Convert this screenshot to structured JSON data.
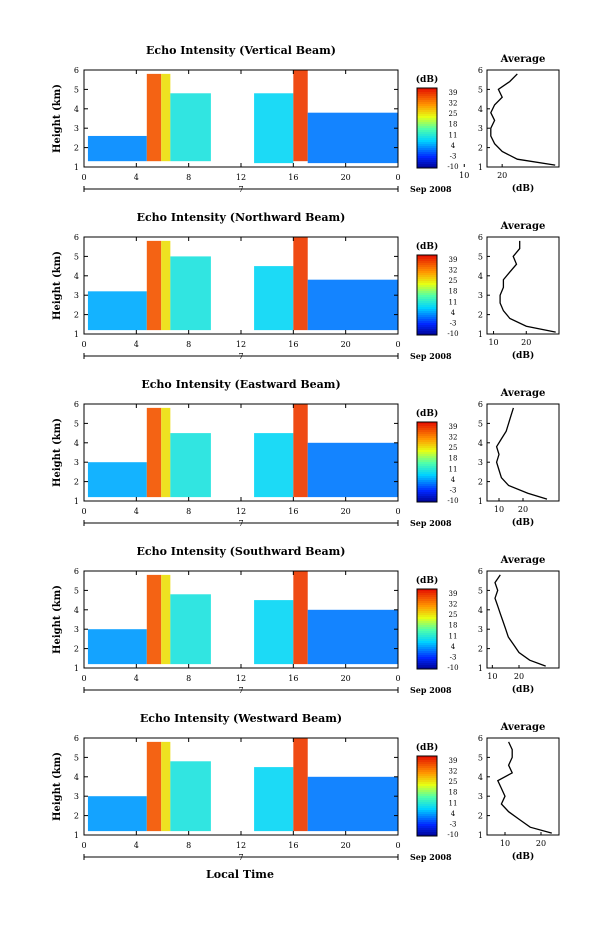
{
  "figure": {
    "xlabel_bottom": "Local Time",
    "date_label": "Sep 2008",
    "day_label": "7",
    "colorbar_unit": "(dB)",
    "colorbar_ticks": [
      "39",
      "32",
      "25",
      "18",
      "11",
      "4",
      "-3",
      "-10"
    ],
    "avg_title": "Average",
    "avg_xlabel": "(dB)"
  },
  "chart_data": [
    {
      "type": "heatmap",
      "title": "Echo Intensity (Vertical Beam)",
      "ylabel": "Height (km)",
      "xlim": [
        0,
        24
      ],
      "ylim": [
        1,
        6
      ],
      "xticks": [
        "0",
        "4",
        "8",
        "12",
        "16",
        "20",
        "0"
      ],
      "yticks": [
        "1",
        "2",
        "3",
        "4",
        "5",
        "6"
      ],
      "colorbar": {
        "min": -10,
        "max": 39,
        "unit": "dB"
      },
      "regions": [
        {
          "x0": 0.3,
          "x1": 4.8,
          "y0": 1.3,
          "y1": 2.6,
          "value": 3
        },
        {
          "x0": 4.8,
          "x1": 5.9,
          "y0": 1.3,
          "y1": 5.8,
          "value": 34
        },
        {
          "x0": 5.9,
          "x1": 6.6,
          "y0": 1.3,
          "y1": 5.8,
          "value": 24
        },
        {
          "x0": 6.6,
          "x1": 9.7,
          "y0": 1.3,
          "y1": 4.8,
          "value": 10
        },
        {
          "x0": 13.0,
          "x1": 16.0,
          "y0": 1.2,
          "y1": 4.8,
          "value": 8
        },
        {
          "x0": 16.0,
          "x1": 17.1,
          "y0": 1.3,
          "y1": 6.0,
          "value": 36
        },
        {
          "x0": 17.1,
          "x1": 24.0,
          "y0": 1.2,
          "y1": 3.8,
          "value": 2
        }
      ],
      "average": {
        "xlim": [
          16,
          35
        ],
        "xticks": [
          "10",
          "20"
        ],
        "heights": [
          1.1,
          1.4,
          1.8,
          2.2,
          2.6,
          3.0,
          3.4,
          3.8,
          4.2,
          4.6,
          5.0,
          5.4,
          5.8
        ],
        "values": [
          34,
          24,
          20,
          18,
          17,
          17,
          18,
          17,
          18,
          20,
          19,
          22,
          24
        ]
      }
    },
    {
      "type": "heatmap",
      "title": "Echo Intensity (Northward Beam)",
      "ylabel": "Height (km)",
      "xlim": [
        0,
        24
      ],
      "ylim": [
        1,
        6
      ],
      "xticks": [
        "0",
        "4",
        "8",
        "12",
        "16",
        "20",
        "0"
      ],
      "yticks": [
        "1",
        "2",
        "3",
        "4",
        "5",
        "6"
      ],
      "colorbar": {
        "min": -10,
        "max": 39,
        "unit": "dB"
      },
      "regions": [
        {
          "x0": 0.3,
          "x1": 4.8,
          "y0": 1.2,
          "y1": 3.2,
          "value": 5
        },
        {
          "x0": 4.8,
          "x1": 5.9,
          "y0": 1.2,
          "y1": 5.8,
          "value": 34
        },
        {
          "x0": 5.9,
          "x1": 6.6,
          "y0": 1.2,
          "y1": 5.8,
          "value": 24
        },
        {
          "x0": 6.6,
          "x1": 9.7,
          "y0": 1.2,
          "y1": 5.0,
          "value": 10
        },
        {
          "x0": 13.0,
          "x1": 16.0,
          "y0": 1.2,
          "y1": 4.5,
          "value": 8
        },
        {
          "x0": 16.0,
          "x1": 17.1,
          "y0": 1.2,
          "y1": 6.0,
          "value": 36
        },
        {
          "x0": 17.1,
          "x1": 24.0,
          "y0": 1.2,
          "y1": 3.8,
          "value": 2
        }
      ],
      "average": {
        "xlim": [
          8,
          30
        ],
        "xticks": [
          "10",
          "20"
        ],
        "heights": [
          1.1,
          1.4,
          1.8,
          2.2,
          2.6,
          3.0,
          3.4,
          3.8,
          4.2,
          4.6,
          5.0,
          5.4,
          5.8
        ],
        "values": [
          29,
          20,
          15,
          13,
          12,
          12,
          13,
          13,
          15,
          17,
          16,
          18,
          18
        ]
      }
    },
    {
      "type": "heatmap",
      "title": "Echo Intensity (Eastward Beam)",
      "ylabel": "Height (km)",
      "xlim": [
        0,
        24
      ],
      "ylim": [
        1,
        6
      ],
      "xticks": [
        "0",
        "4",
        "8",
        "12",
        "16",
        "20",
        "0"
      ],
      "yticks": [
        "1",
        "2",
        "3",
        "4",
        "5",
        "6"
      ],
      "colorbar": {
        "min": -10,
        "max": 39,
        "unit": "dB"
      },
      "regions": [
        {
          "x0": 0.3,
          "x1": 4.8,
          "y0": 1.2,
          "y1": 3.0,
          "value": 5
        },
        {
          "x0": 4.8,
          "x1": 5.9,
          "y0": 1.2,
          "y1": 5.8,
          "value": 34
        },
        {
          "x0": 5.9,
          "x1": 6.6,
          "y0": 1.2,
          "y1": 5.8,
          "value": 24
        },
        {
          "x0": 6.6,
          "x1": 9.7,
          "y0": 1.2,
          "y1": 4.5,
          "value": 10
        },
        {
          "x0": 13.0,
          "x1": 16.0,
          "y0": 1.2,
          "y1": 4.5,
          "value": 8
        },
        {
          "x0": 16.0,
          "x1": 17.1,
          "y0": 1.2,
          "y1": 6.0,
          "value": 36
        },
        {
          "x0": 17.1,
          "x1": 24.0,
          "y0": 1.2,
          "y1": 4.0,
          "value": 2
        }
      ],
      "average": {
        "xlim": [
          5,
          35
        ],
        "xticks": [
          "10",
          "20"
        ],
        "heights": [
          1.1,
          1.4,
          1.8,
          2.2,
          2.6,
          3.0,
          3.4,
          3.8,
          4.2,
          4.6,
          5.0,
          5.4,
          5.8
        ],
        "values": [
          30,
          22,
          14,
          11,
          10,
          9,
          10,
          9,
          11,
          13,
          14,
          15,
          16
        ]
      }
    },
    {
      "type": "heatmap",
      "title": "Echo Intensity (Southward Beam)",
      "ylabel": "Height (km)",
      "xlim": [
        0,
        24
      ],
      "ylim": [
        1,
        6
      ],
      "xticks": [
        "0",
        "4",
        "8",
        "12",
        "16",
        "20",
        "0"
      ],
      "yticks": [
        "1",
        "2",
        "3",
        "4",
        "5",
        "6"
      ],
      "colorbar": {
        "min": -10,
        "max": 39,
        "unit": "dB"
      },
      "regions": [
        {
          "x0": 0.3,
          "x1": 4.8,
          "y0": 1.2,
          "y1": 3.0,
          "value": 4
        },
        {
          "x0": 4.8,
          "x1": 5.9,
          "y0": 1.2,
          "y1": 5.8,
          "value": 34
        },
        {
          "x0": 5.9,
          "x1": 6.6,
          "y0": 1.2,
          "y1": 5.8,
          "value": 24
        },
        {
          "x0": 6.6,
          "x1": 9.7,
          "y0": 1.2,
          "y1": 4.8,
          "value": 10
        },
        {
          "x0": 13.0,
          "x1": 16.0,
          "y0": 1.2,
          "y1": 4.5,
          "value": 8
        },
        {
          "x0": 16.0,
          "x1": 17.1,
          "y0": 1.2,
          "y1": 6.0,
          "value": 36
        },
        {
          "x0": 17.1,
          "x1": 24.0,
          "y0": 1.2,
          "y1": 4.0,
          "value": 2
        }
      ],
      "average": {
        "xlim": [
          8,
          35
        ],
        "xticks": [
          "10",
          "20"
        ],
        "heights": [
          1.1,
          1.4,
          1.8,
          2.2,
          2.6,
          3.0,
          3.4,
          3.8,
          4.2,
          4.6,
          5.0,
          5.4,
          5.8
        ],
        "values": [
          30,
          24,
          20,
          18,
          16,
          15,
          14,
          13,
          12,
          11,
          12,
          11,
          13
        ]
      }
    },
    {
      "type": "heatmap",
      "title": "Echo Intensity (Westward Beam)",
      "ylabel": "Height (km)",
      "xlim": [
        0,
        24
      ],
      "ylim": [
        1,
        6
      ],
      "xticks": [
        "0",
        "4",
        "8",
        "12",
        "16",
        "20",
        "0"
      ],
      "yticks": [
        "1",
        "2",
        "3",
        "4",
        "5",
        "6"
      ],
      "colorbar": {
        "min": -10,
        "max": 39,
        "unit": "dB"
      },
      "regions": [
        {
          "x0": 0.3,
          "x1": 4.8,
          "y0": 1.2,
          "y1": 3.0,
          "value": 4
        },
        {
          "x0": 4.8,
          "x1": 5.9,
          "y0": 1.2,
          "y1": 5.8,
          "value": 34
        },
        {
          "x0": 5.9,
          "x1": 6.6,
          "y0": 1.2,
          "y1": 5.8,
          "value": 24
        },
        {
          "x0": 6.6,
          "x1": 9.7,
          "y0": 1.2,
          "y1": 4.8,
          "value": 10
        },
        {
          "x0": 13.0,
          "x1": 16.0,
          "y0": 1.2,
          "y1": 4.5,
          "value": 8
        },
        {
          "x0": 16.0,
          "x1": 17.1,
          "y0": 1.2,
          "y1": 6.0,
          "value": 36
        },
        {
          "x0": 17.1,
          "x1": 24.0,
          "y0": 1.2,
          "y1": 4.0,
          "value": 2
        }
      ],
      "average": {
        "xlim": [
          5,
          25
        ],
        "xticks": [
          "10",
          "20"
        ],
        "heights": [
          1.1,
          1.4,
          1.8,
          2.2,
          2.6,
          3.0,
          3.4,
          3.8,
          4.2,
          4.6,
          5.0,
          5.4,
          5.8
        ],
        "values": [
          23,
          17,
          14,
          11,
          9,
          10,
          9,
          8,
          12,
          11,
          12,
          12,
          11
        ]
      }
    }
  ]
}
